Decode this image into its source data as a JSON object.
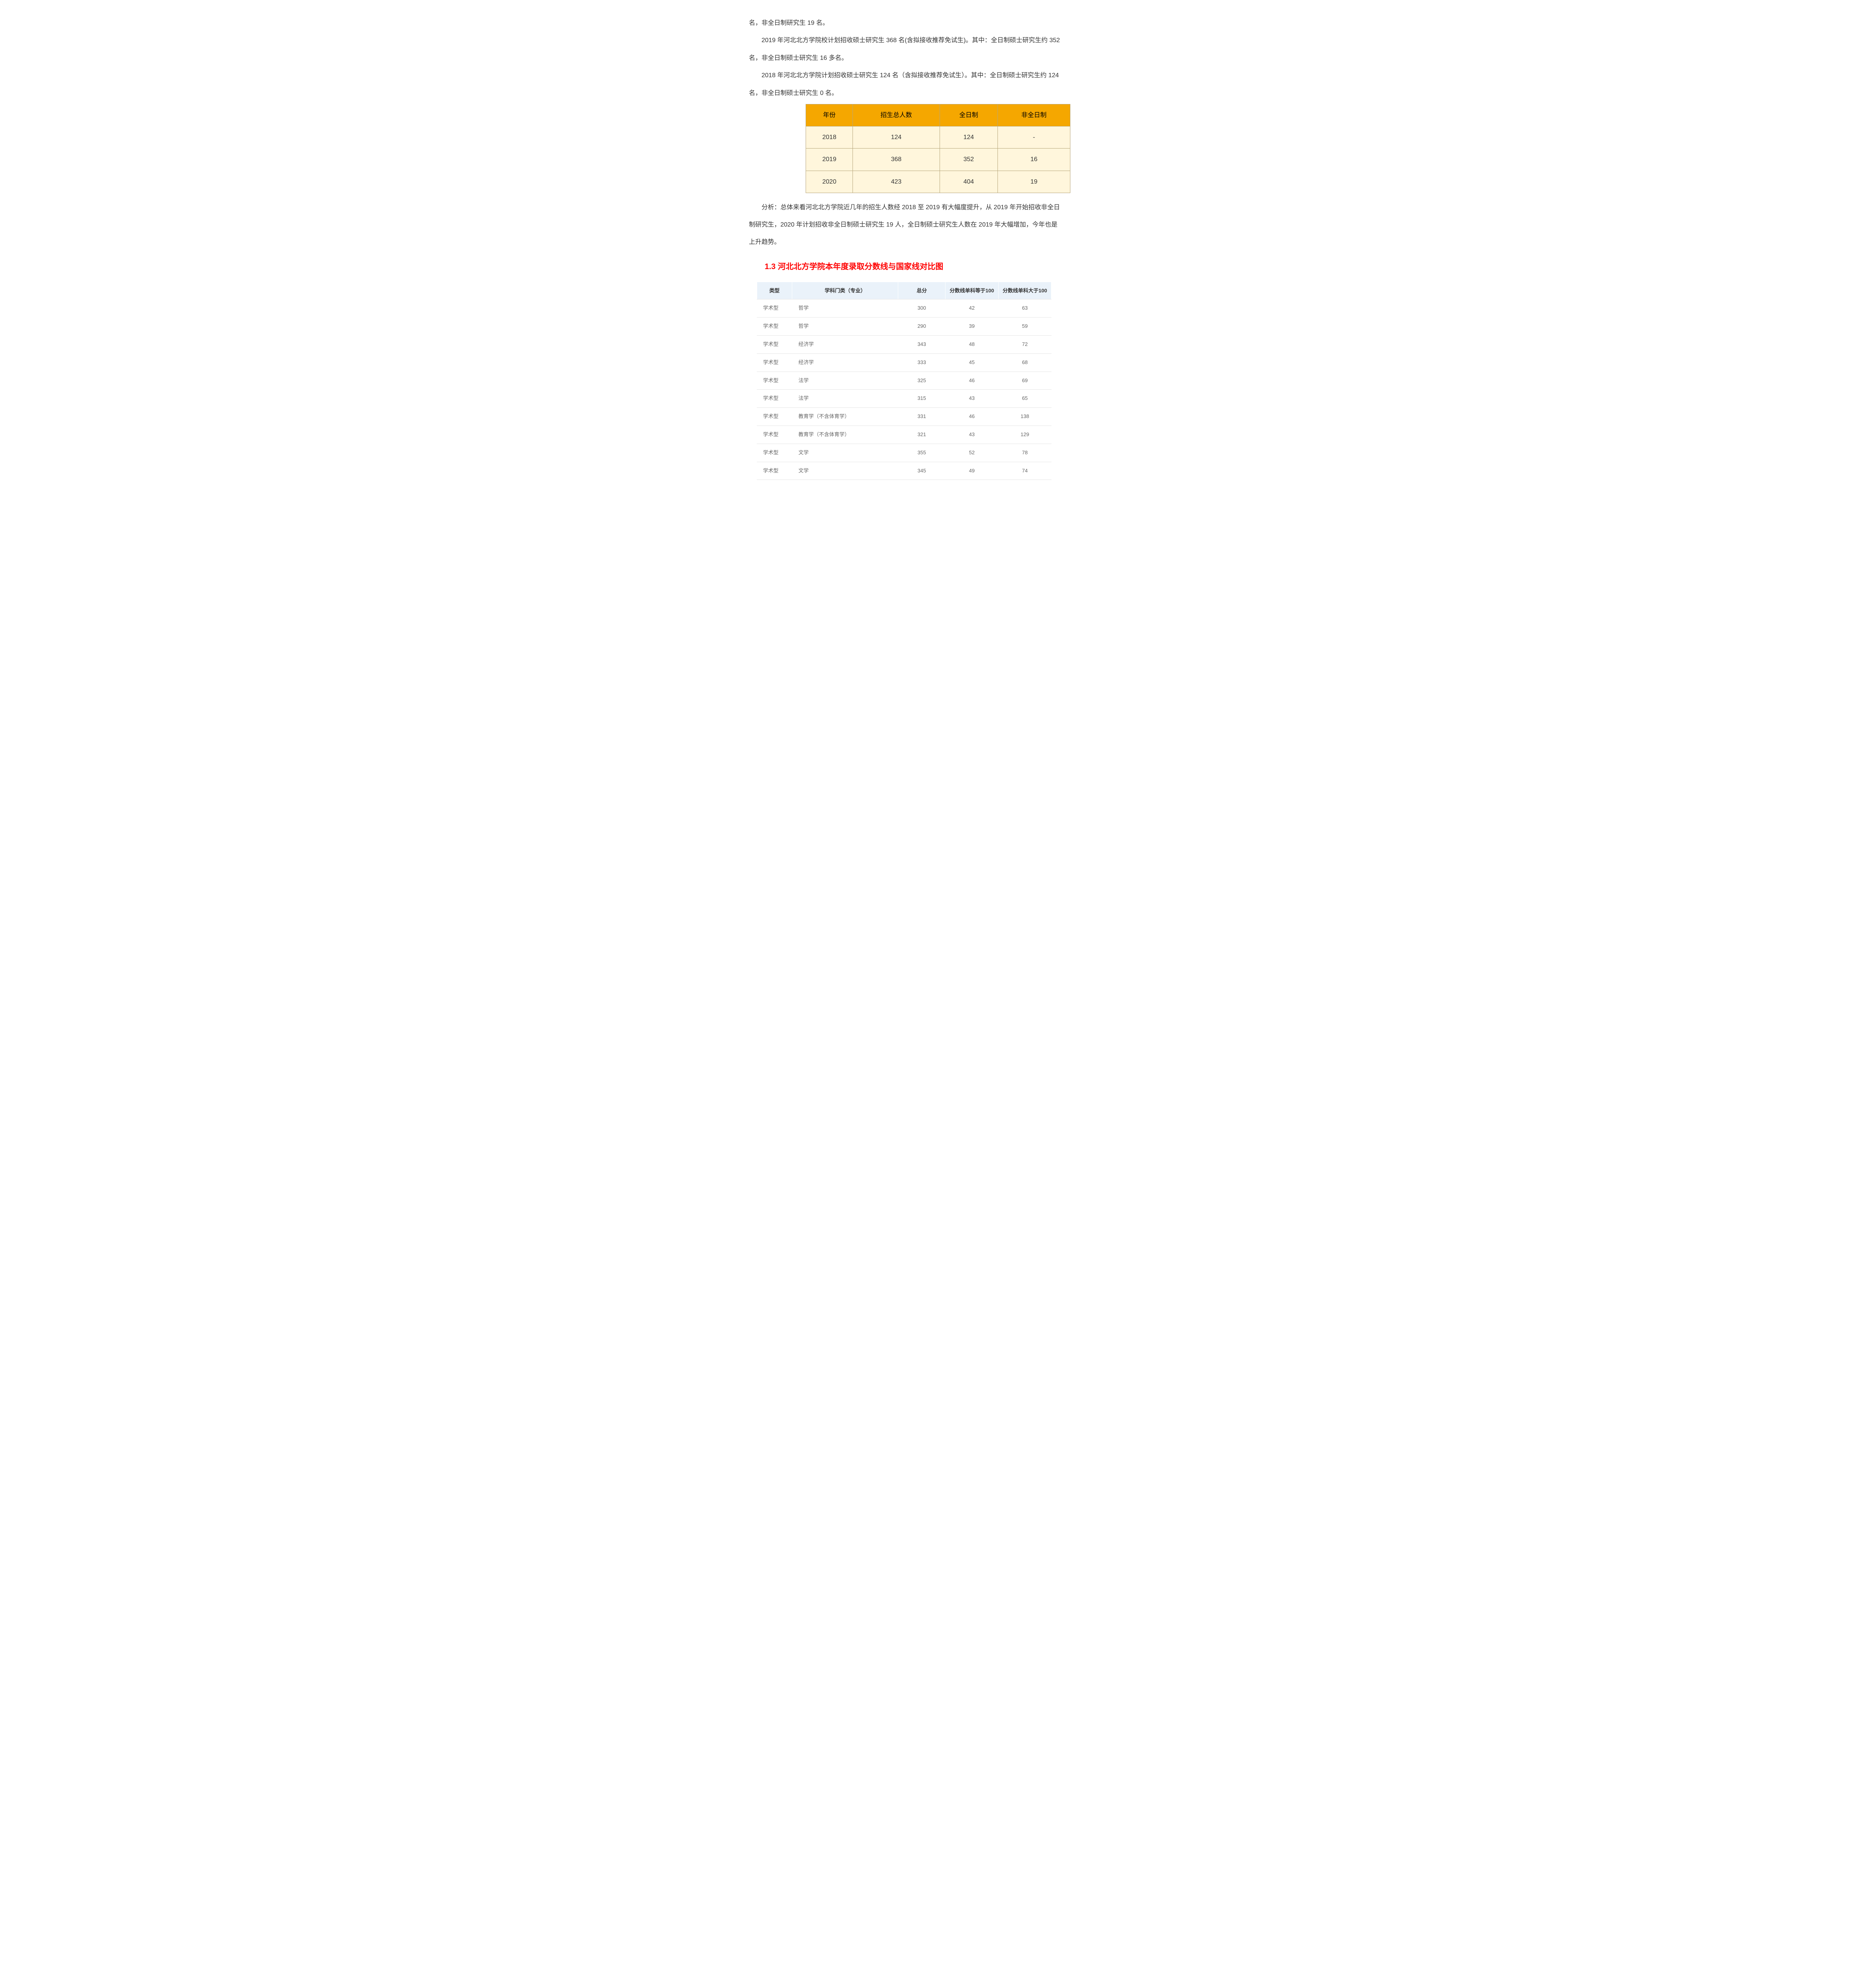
{
  "paragraphs": {
    "p1": "名，非全日制研究生 19 名。",
    "p2": "2019 年河北北方学院校计划招收硕士研究生 368 名(含拟接收推荐免试生)。其中：全日制硕士研究生约 352",
    "p2b": "名，非全日制硕士研究生 16 多名。",
    "p3": "2018 年河北北方学院计划招收硕士研究生 124 名（含拟接收推荐免试生）。其中：全日制硕士研究生约 124",
    "p3b": "名，非全日制硕士研究生 0 名。",
    "analysis": "分析：总体来看河北北方学院近几年的招生人数经 2018 至 2019 有大幅度提升，从 2019 年开始招收非全日",
    "analysis_b": "制研究生，2020 年计划招收非全日制硕士研究生 19 人，全日制硕士研究生人数在 2019 年大幅增加，今年也是",
    "analysis_c": "上升趋势。"
  },
  "enroll_table": {
    "headers": {
      "year": "年份",
      "total": "招生总人数",
      "full": "全日制",
      "part": "非全日制"
    },
    "rows": [
      {
        "year": "2018",
        "total": "124",
        "full": "124",
        "part": "-"
      },
      {
        "year": "2019",
        "total": "368",
        "full": "352",
        "part": "16"
      },
      {
        "year": "2020",
        "total": "423",
        "full": "404",
        "part": "19"
      }
    ],
    "colors": {
      "header_bg": "#f5a700",
      "cell_bg": "#fff6dc",
      "border": "#b7a77c"
    }
  },
  "section_title": "1.3 河北北方学院本年度录取分数线与国家线对比图",
  "score_table": {
    "headers": {
      "type": "类型",
      "major": "学科门类（专业）",
      "total": "总分",
      "eq100": "分数线单科等于100",
      "gt100": "分数线单科大于100"
    },
    "rows": [
      {
        "type": "学术型",
        "major": "哲学",
        "total": "300",
        "eq100": "42",
        "gt100": "63"
      },
      {
        "type": "学术型",
        "major": "哲学",
        "total": "290",
        "eq100": "39",
        "gt100": "59"
      },
      {
        "type": "学术型",
        "major": "经济学",
        "total": "343",
        "eq100": "48",
        "gt100": "72"
      },
      {
        "type": "学术型",
        "major": "经济学",
        "total": "333",
        "eq100": "45",
        "gt100": "68"
      },
      {
        "type": "学术型",
        "major": "法学",
        "total": "325",
        "eq100": "46",
        "gt100": "69"
      },
      {
        "type": "学术型",
        "major": "法学",
        "total": "315",
        "eq100": "43",
        "gt100": "65"
      },
      {
        "type": "学术型",
        "major": "教育学（不含体育学）",
        "total": "331",
        "eq100": "46",
        "gt100": "138"
      },
      {
        "type": "学术型",
        "major": "教育学（不含体育学）",
        "total": "321",
        "eq100": "43",
        "gt100": "129"
      },
      {
        "type": "学术型",
        "major": "文学",
        "total": "355",
        "eq100": "52",
        "gt100": "78"
      },
      {
        "type": "学术型",
        "major": "文学",
        "total": "345",
        "eq100": "49",
        "gt100": "74"
      }
    ],
    "colors": {
      "header_bg": "#eaf2fa",
      "row_border": "#e6e6e6"
    }
  }
}
